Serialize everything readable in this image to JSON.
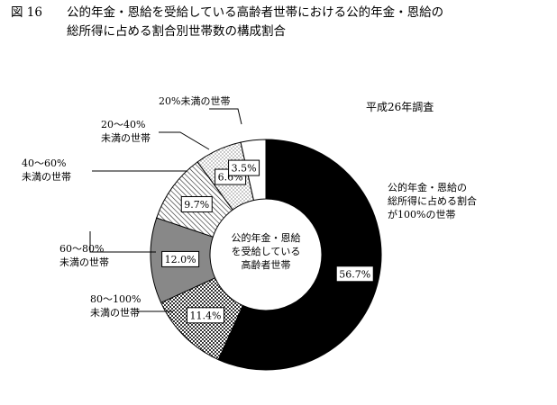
{
  "title": {
    "number": "図 16",
    "line1": "公的年金・恩給を受給している高齢者世帯における公的年金・恩給の",
    "line2": "総所得に占める割合別世帯数の構成割合"
  },
  "note": "平成26年調査",
  "chart_data": {
    "type": "donut",
    "center_label": [
      "公的年金・恩給",
      "を受給している",
      "高齢者世帯"
    ],
    "slices": [
      {
        "category": [
          "公的年金・恩給の",
          "総所得に占める割合",
          "が100%の世帯"
        ],
        "value": 56.7,
        "value_label": "56.7%",
        "fill": "black"
      },
      {
        "category": [
          "80～100%",
          "未満の世帯"
        ],
        "value": 11.4,
        "value_label": "11.4%",
        "fill": "checker"
      },
      {
        "category": [
          "60～80%",
          "未満の世帯"
        ],
        "value": 12.0,
        "value_label": "12.0%",
        "fill": "gray"
      },
      {
        "category": [
          "40～60%",
          "未満の世帯"
        ],
        "value": 9.7,
        "value_label": "9.7%",
        "fill": "hatch"
      },
      {
        "category": [
          "20～40%",
          "未満の世帯"
        ],
        "value": 6.6,
        "value_label": "6.6%",
        "fill": "dots"
      },
      {
        "category": [
          "20%未満の世帯"
        ],
        "value": 3.5,
        "value_label": "3.5%",
        "fill": "white"
      }
    ]
  }
}
